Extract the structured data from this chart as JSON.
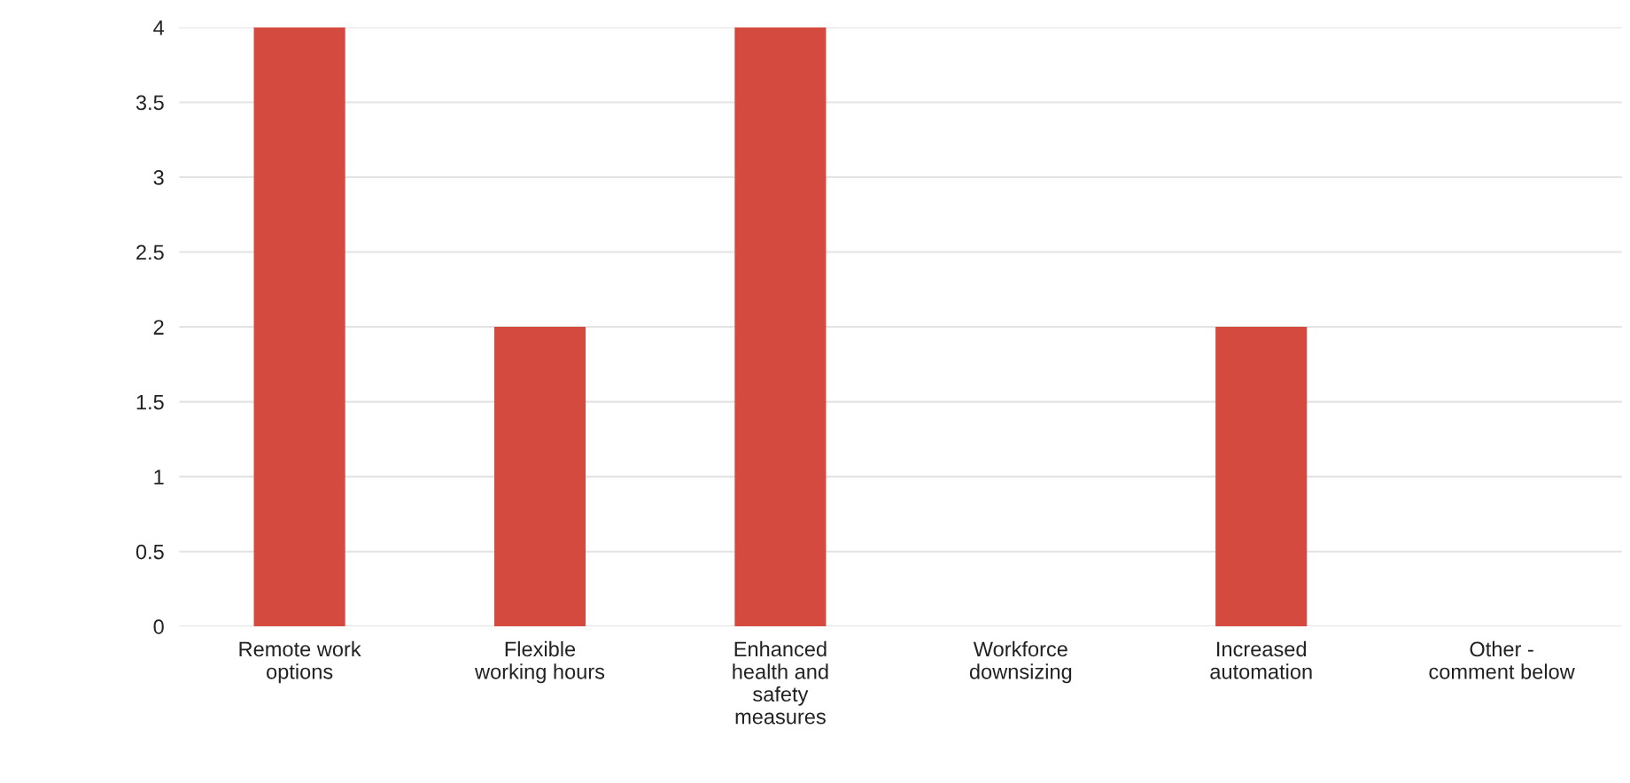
{
  "chart_data": {
    "type": "bar",
    "categories": [
      "Remote work options",
      "Flexible working hours",
      "Enhanced health and safety measures",
      "Workforce downsizing",
      "Increased automation",
      "Other - comment below"
    ],
    "values": [
      4,
      2,
      4,
      0,
      2,
      0
    ],
    "color": "#d44a3f",
    "ylim": [
      0,
      4
    ],
    "yticks": [
      0,
      {
        "value": 0.5,
        "label": "0.5"
      },
      1,
      {
        "value": 1.5,
        "label": "1.5"
      },
      2,
      {
        "value": 2.5,
        "label": "2.5"
      },
      3,
      {
        "value": 3.5,
        "label": "3.5"
      },
      4
    ],
    "grid": "y",
    "legend": false
  }
}
